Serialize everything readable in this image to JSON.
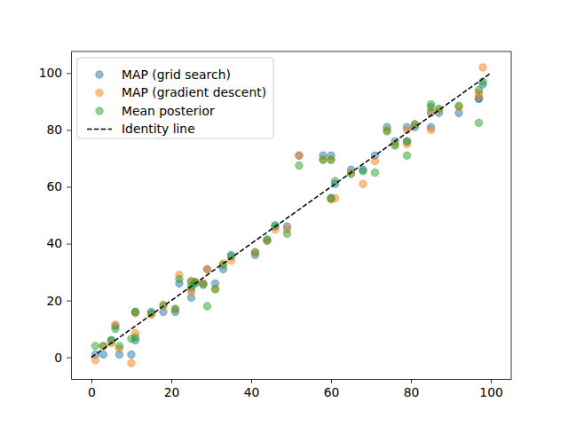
{
  "chart_data": {
    "type": "scatter",
    "x": [
      1,
      3,
      5,
      6,
      7,
      10,
      11,
      11,
      15,
      18,
      21,
      22,
      25,
      25,
      26,
      28,
      29,
      31,
      33,
      35,
      41,
      44,
      46,
      49,
      52,
      58,
      60,
      60,
      61,
      65,
      68,
      71,
      74,
      76,
      79,
      79,
      81,
      85,
      85,
      87,
      92,
      97,
      97,
      98
    ],
    "series": [
      {
        "name": "MAP (grid search)",
        "color": "#1f77b4",
        "marker": "circle",
        "values": [
          1,
          1,
          6,
          11,
          1,
          1,
          6,
          16,
          16,
          16,
          16,
          26,
          21,
          24,
          26,
          26,
          31,
          26,
          31,
          36,
          36,
          41,
          46,
          46,
          71,
          71,
          71,
          56,
          61,
          66,
          66,
          71,
          81,
          76,
          81,
          76,
          81,
          81,
          86,
          86,
          86,
          91,
          91,
          96
        ]
      },
      {
        "name": "MAP (gradient descent)",
        "color": "#ff7f0e",
        "marker": "circle",
        "values": [
          -1,
          4,
          5,
          11.5,
          3,
          -2,
          8.5,
          15.5,
          15,
          18,
          17,
          29,
          27,
          23,
          26.5,
          26,
          31,
          24,
          33,
          34,
          37,
          41,
          45,
          45,
          71,
          69.5,
          69.5,
          55.5,
          56,
          65,
          61,
          69,
          80,
          75,
          80,
          75,
          82,
          80,
          86.5,
          87,
          88,
          93,
          92,
          102
        ]
      },
      {
        "name": "Mean posterior",
        "color": "#2ca02c",
        "marker": "circle",
        "values": [
          4,
          4,
          6,
          10,
          4,
          6.5,
          7,
          16,
          15.5,
          18.5,
          17,
          27.5,
          26.5,
          25,
          26.5,
          25.5,
          18,
          24,
          32.5,
          35.5,
          37,
          41.5,
          46.5,
          43.5,
          67.5,
          69.5,
          69.5,
          56,
          62,
          64.5,
          65.5,
          65,
          79.5,
          74.5,
          71,
          76,
          82,
          89,
          88,
          87.5,
          88.5,
          82.5,
          94,
          97
        ]
      },
      {
        "name": "Identity line",
        "type": "line",
        "color": "#000000",
        "line_style": "dashed",
        "x": [
          0,
          100
        ],
        "values": [
          0,
          100
        ]
      }
    ],
    "xlim": [
      -5.1,
      105.1
    ],
    "ylim": [
      -7.6,
      107.6
    ],
    "xticks": [
      0,
      20,
      40,
      60,
      80,
      100
    ],
    "yticks": [
      0,
      20,
      40,
      60,
      80,
      100
    ],
    "grid": false,
    "legend": "upper left"
  }
}
